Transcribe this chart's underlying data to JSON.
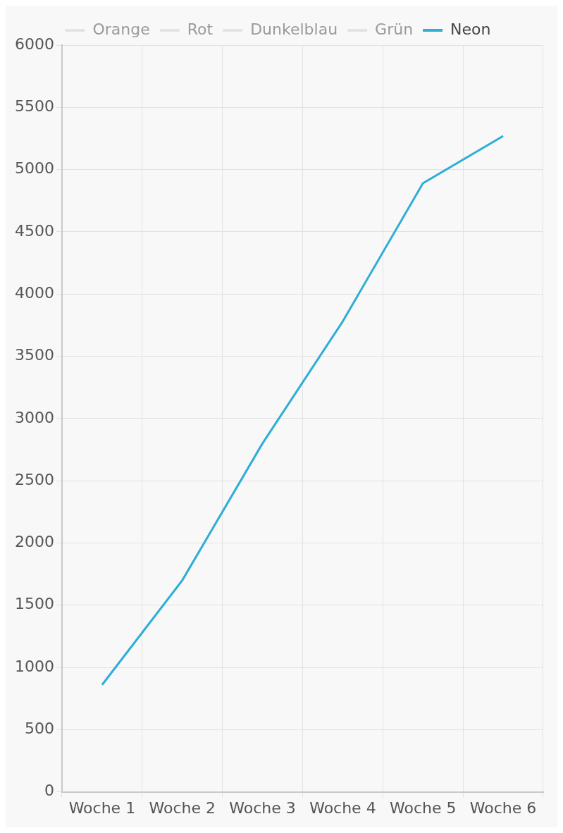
{
  "chart_data": {
    "type": "line",
    "categories": [
      "Woche 1",
      "Woche 2",
      "Woche 3",
      "Woche 4",
      "Woche 5",
      "Woche 6"
    ],
    "series": [
      {
        "name": "Orange",
        "color": "#e3e3e3",
        "values": [
          null,
          null,
          null,
          null,
          null,
          null
        ]
      },
      {
        "name": "Rot",
        "color": "#e3e3e3",
        "values": [
          null,
          null,
          null,
          null,
          null,
          null
        ]
      },
      {
        "name": "Dunkelblau",
        "color": "#e3e3e3",
        "values": [
          null,
          null,
          null,
          null,
          null,
          null
        ]
      },
      {
        "name": "Grün",
        "color": "#e3e3e3",
        "values": [
          null,
          null,
          null,
          null,
          null,
          null
        ]
      },
      {
        "name": "Neon",
        "color": "#2eaed6",
        "values": [
          860,
          1700,
          2800,
          3780,
          4890,
          5270
        ]
      }
    ],
    "ylim": [
      0,
      6000
    ],
    "yticks": [
      0,
      500,
      1000,
      1500,
      2000,
      2500,
      3000,
      3500,
      4000,
      4500,
      5000,
      5500,
      6000
    ],
    "grid": true,
    "legend": "top",
    "marker": "none"
  }
}
